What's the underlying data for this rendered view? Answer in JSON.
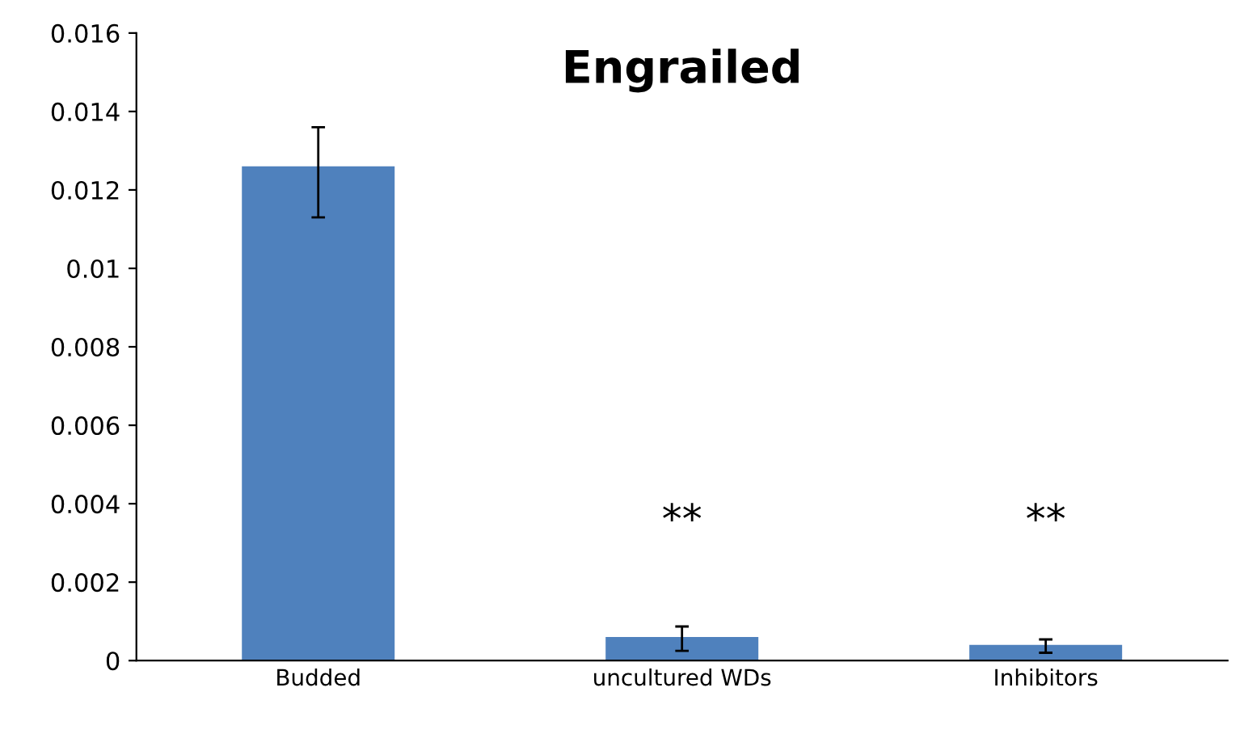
{
  "chart_data": {
    "type": "bar",
    "title": "Engrailed",
    "categories": [
      "Budded",
      "uncultured WDs",
      "Inhibitors"
    ],
    "values": [
      0.0126,
      0.0006,
      0.0004
    ],
    "errors": [
      [
        0.0113,
        0.0136
      ],
      [
        0.00025,
        0.00087
      ],
      [
        0.0002,
        0.00054
      ]
    ],
    "color": "#4f81bd",
    "ylim": [
      0,
      0.016
    ],
    "yticks": [
      0,
      0.002,
      0.004,
      0.006,
      0.008,
      0.01,
      0.012,
      0.014,
      0.016
    ],
    "annotations": [
      "**",
      "**"
    ]
  }
}
